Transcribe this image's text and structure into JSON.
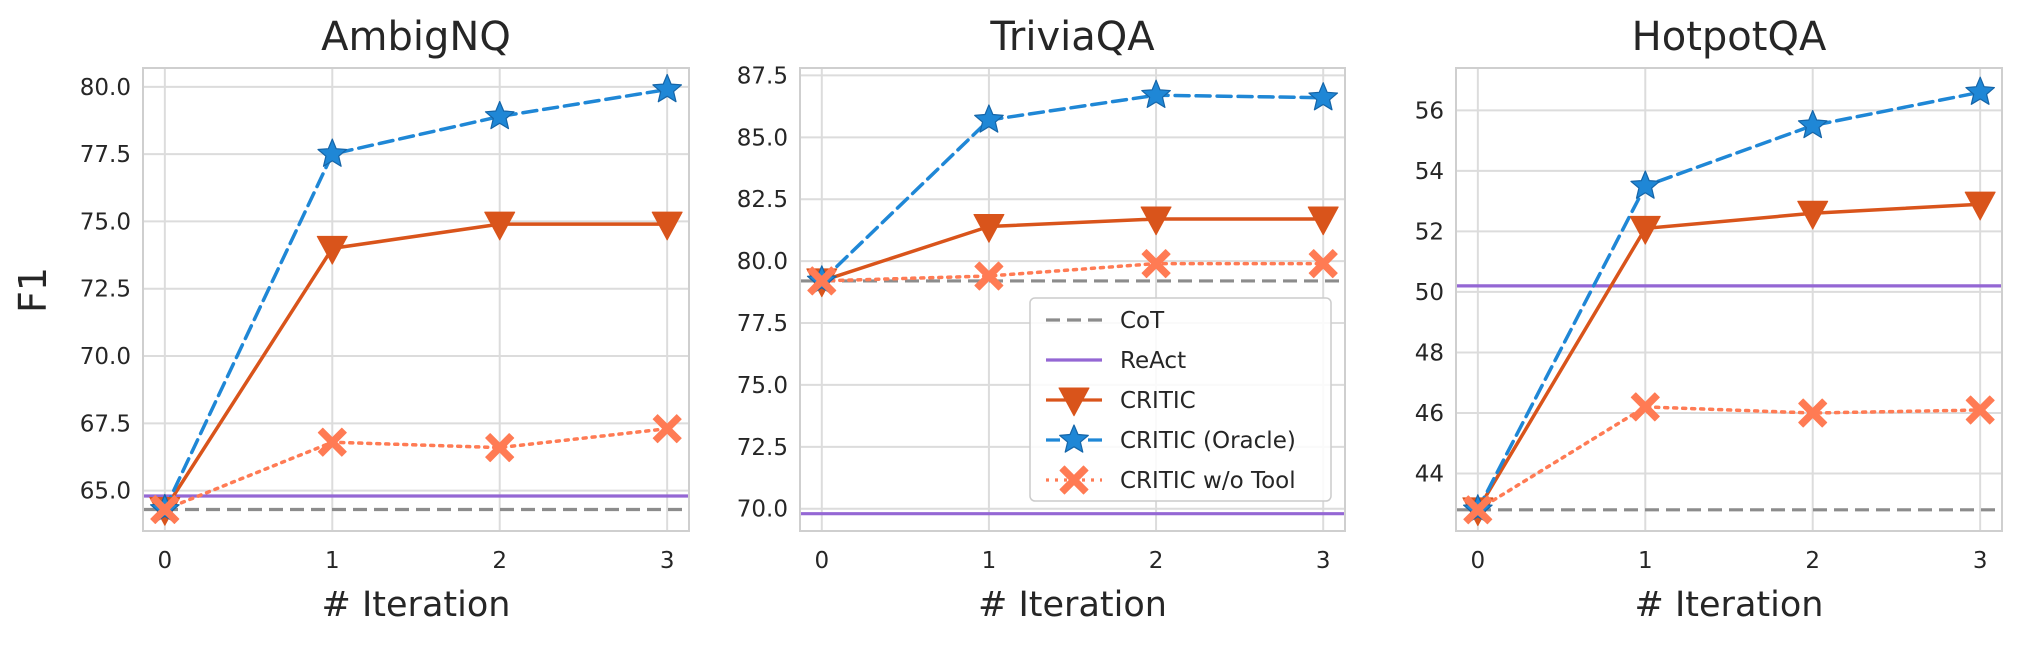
{
  "figure": {
    "ylabel": "F1",
    "legend_labels": [
      "CoT",
      "ReAct",
      "CRITIC",
      "CRITIC (Oracle)",
      "CRITIC w/o Tool"
    ]
  },
  "chart_data": [
    {
      "type": "line",
      "title": "AmbigNQ",
      "xlabel": "# Iteration",
      "ylabel": "F1",
      "x": [
        0,
        1,
        2,
        3
      ],
      "x_ticks": [
        "0",
        "1",
        "2",
        "3"
      ],
      "ylim": [
        63.5,
        80.7
      ],
      "y_ticks": [
        "65.0",
        "67.5",
        "70.0",
        "72.5",
        "75.0",
        "77.5",
        "80.0"
      ],
      "grid": true,
      "legend": "none",
      "baselines": [
        {
          "name": "CoT",
          "value": 64.3,
          "color": "#8c8c8c",
          "style": "dashed"
        },
        {
          "name": "ReAct",
          "value": 64.8,
          "color": "#9467d4",
          "style": "solid"
        }
      ],
      "series": [
        {
          "name": "CRITIC",
          "values": [
            64.3,
            74.0,
            74.9,
            74.9
          ],
          "color": "#d9541b",
          "marker": "triangle-down",
          "style": "solid"
        },
        {
          "name": "CRITIC (Oracle)",
          "values": [
            64.3,
            77.5,
            78.9,
            79.9
          ],
          "color": "#1f87d6",
          "marker": "star",
          "style": "dashed"
        },
        {
          "name": "CRITIC w/o Tool",
          "values": [
            64.3,
            66.8,
            66.6,
            67.3
          ],
          "color": "#ff7b54",
          "marker": "x",
          "style": "dotted"
        }
      ]
    },
    {
      "type": "line",
      "title": "TriviaQA",
      "xlabel": "# Iteration",
      "ylabel": "",
      "x": [
        0,
        1,
        2,
        3
      ],
      "x_ticks": [
        "0",
        "1",
        "2",
        "3"
      ],
      "ylim": [
        69.1,
        87.8
      ],
      "y_ticks": [
        "70.0",
        "72.5",
        "75.0",
        "77.5",
        "80.0",
        "82.5",
        "85.0",
        "87.5"
      ],
      "grid": true,
      "legend": "lower-right",
      "baselines": [
        {
          "name": "CoT",
          "value": 79.2,
          "color": "#8c8c8c",
          "style": "dashed"
        },
        {
          "name": "ReAct",
          "value": 69.8,
          "color": "#9467d4",
          "style": "solid"
        }
      ],
      "series": [
        {
          "name": "CRITIC",
          "values": [
            79.2,
            81.4,
            81.7,
            81.7
          ],
          "color": "#d9541b",
          "marker": "triangle-down",
          "style": "solid"
        },
        {
          "name": "CRITIC (Oracle)",
          "values": [
            79.2,
            85.7,
            86.7,
            86.6
          ],
          "color": "#1f87d6",
          "marker": "star",
          "style": "dashed"
        },
        {
          "name": "CRITIC w/o Tool",
          "values": [
            79.2,
            79.4,
            79.9,
            79.9
          ],
          "color": "#ff7b54",
          "marker": "x",
          "style": "dotted"
        }
      ]
    },
    {
      "type": "line",
      "title": "HotpotQA",
      "xlabel": "# Iteration",
      "ylabel": "",
      "x": [
        0,
        1,
        2,
        3
      ],
      "x_ticks": [
        "0",
        "1",
        "2",
        "3"
      ],
      "ylim": [
        42.1,
        57.4
      ],
      "y_ticks": [
        "44",
        "46",
        "48",
        "50",
        "52",
        "54",
        "56"
      ],
      "grid": true,
      "legend": "none",
      "baselines": [
        {
          "name": "CoT",
          "value": 42.8,
          "color": "#8c8c8c",
          "style": "dashed"
        },
        {
          "name": "ReAct",
          "value": 50.2,
          "color": "#9467d4",
          "style": "solid"
        }
      ],
      "series": [
        {
          "name": "CRITIC",
          "values": [
            42.8,
            52.1,
            52.6,
            52.9
          ],
          "color": "#d9541b",
          "marker": "triangle-down",
          "style": "solid"
        },
        {
          "name": "CRITIC (Oracle)",
          "values": [
            42.8,
            53.5,
            55.5,
            56.6
          ],
          "color": "#1f87d6",
          "marker": "star",
          "style": "dashed"
        },
        {
          "name": "CRITIC w/o Tool",
          "values": [
            42.8,
            46.2,
            46.0,
            46.1
          ],
          "color": "#ff7b54",
          "marker": "x",
          "style": "dotted"
        }
      ]
    }
  ]
}
